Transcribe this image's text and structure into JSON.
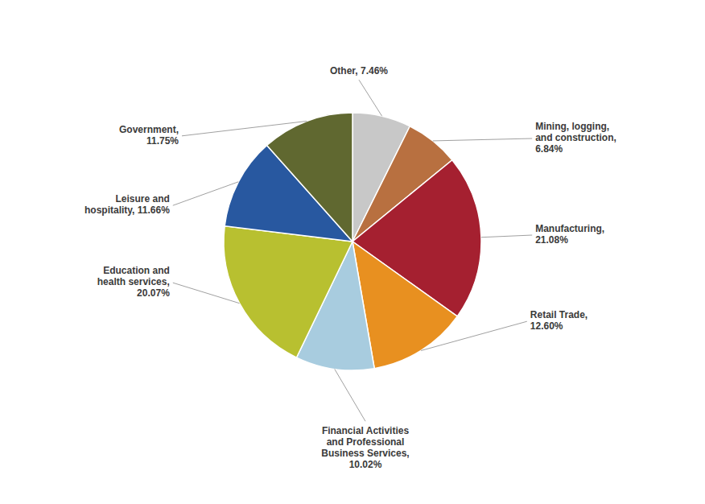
{
  "chart_data": {
    "type": "pie",
    "values": [
      7.46,
      6.84,
      21.08,
      12.6,
      10.02,
      20.07,
      11.66,
      11.75
    ],
    "value_labels": [
      "Other, 7.46%",
      "Mining, logging,\nand construction,\n6.84%",
      "Manufacturing,\n21.08%",
      "Retail Trade,\n12.60%",
      "Financial Activities\nand Professional\nBusiness Services,\n10.02%",
      "Education and\nhealth services,\n20.07%",
      "Leisure and\nhospitality, 11.66%",
      "Government,\n11.75%"
    ],
    "colors": [
      "#c8c8c8",
      "#b87040",
      "#a52030",
      "#e89020",
      "#a8ccdf",
      "#b8c030",
      "#2858a0",
      "#606830"
    ]
  }
}
